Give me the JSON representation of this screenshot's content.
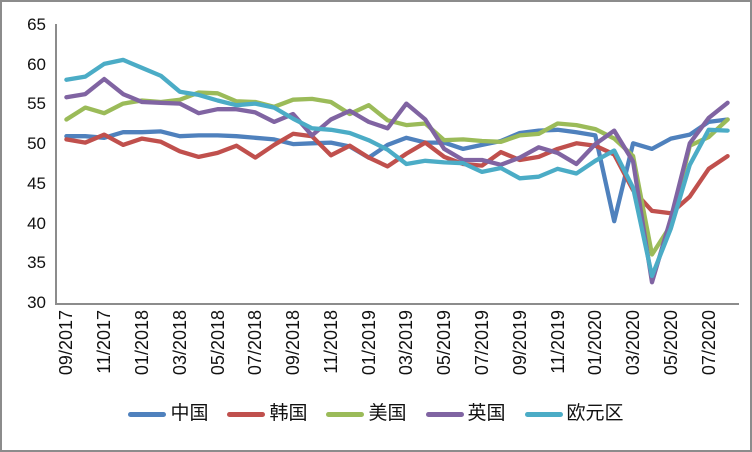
{
  "chart_data": {
    "type": "line",
    "title": "",
    "x": [
      "09/2017",
      "10/2017",
      "11/2017",
      "12/2017",
      "01/2018",
      "02/2018",
      "03/2018",
      "04/2018",
      "05/2018",
      "06/2018",
      "07/2018",
      "08/2018",
      "09/2018",
      "10/2018",
      "11/2018",
      "12/2018",
      "01/2019",
      "02/2019",
      "03/2019",
      "04/2019",
      "05/2019",
      "06/2019",
      "07/2019",
      "08/2019",
      "09/2019",
      "10/2019",
      "11/2019",
      "12/2019",
      "01/2020",
      "02/2020",
      "03/2020",
      "04/2020",
      "05/2020",
      "06/2020",
      "07/2020",
      "08/2020"
    ],
    "x_tick_labels": [
      "09/2017",
      "11/2017",
      "01/2018",
      "03/2018",
      "05/2018",
      "07/2018",
      "09/2018",
      "11/2018",
      "01/2019",
      "03/2019",
      "05/2019",
      "07/2019",
      "09/2019",
      "11/2019",
      "01/2020",
      "03/2020",
      "05/2020",
      "07/2020"
    ],
    "x_tick_every": 2,
    "y_ticks": [
      65,
      60,
      55,
      50,
      45,
      40,
      35,
      30
    ],
    "ylim": [
      30,
      65
    ],
    "grid": false,
    "legend_position": "bottom",
    "axis_color": "#8c8c8c",
    "series": [
      {
        "id": "china",
        "name": "中国",
        "color": "#4F81BD",
        "values": [
          51.0,
          51.0,
          50.8,
          51.5,
          51.5,
          51.6,
          51.0,
          51.1,
          51.1,
          51.0,
          50.8,
          50.6,
          50.0,
          50.1,
          50.2,
          49.7,
          48.3,
          49.9,
          50.8,
          50.2,
          50.2,
          49.4,
          49.9,
          50.4,
          51.4,
          51.7,
          51.8,
          51.5,
          51.1,
          40.3,
          50.1,
          49.4,
          50.7,
          51.2,
          52.8,
          53.1
        ]
      },
      {
        "id": "korea",
        "name": "韩国",
        "color": "#C0504D",
        "values": [
          50.6,
          50.2,
          51.2,
          49.9,
          50.7,
          50.3,
          49.1,
          48.4,
          48.9,
          49.8,
          48.3,
          49.9,
          51.3,
          51.0,
          48.6,
          49.8,
          48.3,
          47.2,
          48.8,
          50.2,
          48.4,
          47.5,
          47.3,
          49.0,
          48.0,
          48.4,
          49.4,
          50.1,
          49.8,
          48.7,
          44.2,
          41.6,
          41.3,
          43.4,
          46.9,
          48.5
        ]
      },
      {
        "id": "us",
        "name": "美国",
        "color": "#9BBB59",
        "values": [
          53.1,
          54.6,
          53.9,
          55.1,
          55.5,
          55.3,
          55.6,
          56.5,
          56.4,
          55.4,
          55.3,
          54.7,
          55.6,
          55.7,
          55.3,
          53.8,
          54.9,
          53.0,
          52.4,
          52.6,
          50.5,
          50.6,
          50.4,
          50.3,
          51.1,
          51.3,
          52.6,
          52.4,
          51.9,
          50.7,
          48.5,
          36.1,
          39.8,
          49.8,
          50.9,
          53.1
        ]
      },
      {
        "id": "uk",
        "name": "英国",
        "color": "#8064A2",
        "values": [
          55.9,
          56.3,
          58.2,
          56.3,
          55.3,
          55.2,
          55.1,
          53.9,
          54.4,
          54.4,
          54.0,
          52.8,
          53.8,
          51.1,
          53.1,
          54.2,
          52.8,
          52.0,
          55.1,
          53.1,
          49.4,
          48.0,
          48.0,
          47.4,
          48.3,
          49.6,
          48.9,
          47.5,
          50.0,
          51.7,
          47.8,
          32.6,
          40.7,
          50.1,
          53.3,
          55.2
        ]
      },
      {
        "id": "eurozone",
        "name": "欧元区",
        "color": "#4BACC6",
        "values": [
          58.1,
          58.5,
          60.1,
          60.6,
          59.6,
          58.6,
          56.6,
          56.2,
          55.5,
          54.9,
          55.1,
          54.6,
          53.2,
          52.0,
          51.8,
          51.4,
          50.5,
          49.3,
          47.5,
          47.9,
          47.7,
          47.6,
          46.5,
          47.0,
          45.7,
          45.9,
          46.9,
          46.3,
          47.9,
          49.2,
          44.5,
          33.4,
          39.4,
          47.4,
          51.8,
          51.7
        ]
      }
    ]
  }
}
